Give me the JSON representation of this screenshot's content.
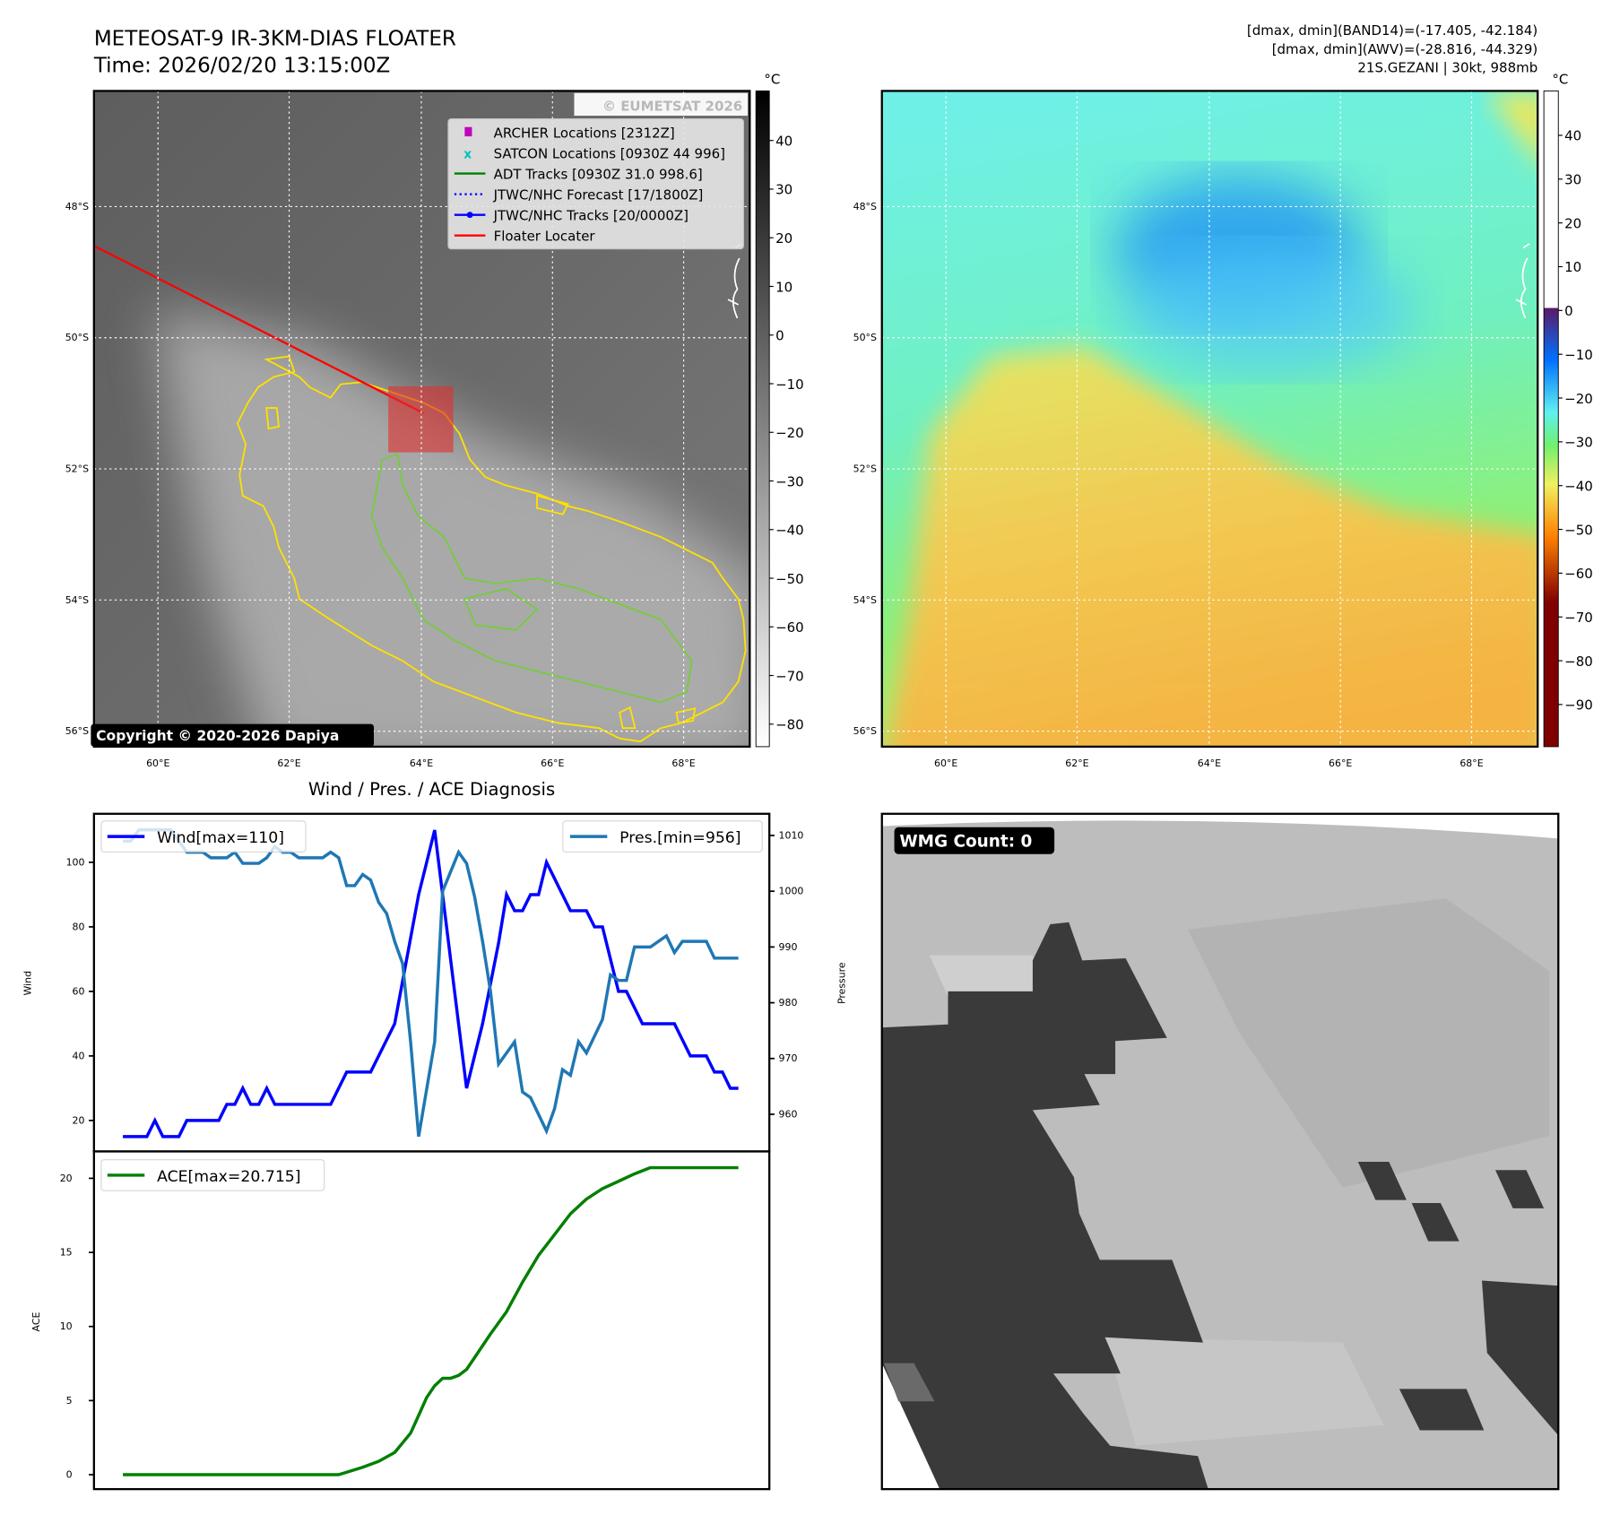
{
  "header": {
    "title": "METEOSAT-9 IR-3KM-DIAS FLOATER",
    "time": "Time: 2026/02/20 13:15:00Z",
    "stats_band14": "[dmax, dmin](BAND14)=(-17.405, -42.184)",
    "stats_awv": "[dmax, dmin](AWV)=(-28.816, -44.329)",
    "storm_info": "21S.GEZANI | 30kt, 988mb"
  },
  "maps": {
    "unit": "°C",
    "lat_labels": [
      "48°S",
      "50°S",
      "52°S",
      "54°S",
      "56°S"
    ],
    "lon_labels": [
      "60°E",
      "62°E",
      "64°E",
      "66°E",
      "68°E"
    ],
    "watermark": "© EUMETSAT 2026",
    "copyright": "Copyright © 2020-2026 Dapiya",
    "legend": [
      {
        "label": "ARCHER Locations [2312Z]",
        "color": "#c000c0"
      },
      {
        "label": "SATCON Locations [0930Z 44 996]",
        "color": "#00c0c0"
      },
      {
        "label": "ADT Tracks [0930Z 31.0 998.6]",
        "color": "#008000"
      },
      {
        "label": "JTWC/NHC Forecast [17/1800Z]",
        "color": "#0000ff"
      },
      {
        "label": "JTWC/NHC Tracks [20/0000Z]",
        "color": "#0000ff"
      },
      {
        "label": "Floater Locater",
        "color": "#ff0000"
      }
    ],
    "ir_colorbar_ticks": [
      "40",
      "30",
      "20",
      "10",
      "0",
      "−10",
      "−20",
      "−30",
      "−40",
      "−50",
      "−60",
      "−70",
      "−80"
    ],
    "awv_colorbar_ticks": [
      "40",
      "30",
      "20",
      "10",
      "0",
      "−10",
      "−20",
      "−30",
      "−40",
      "−50",
      "−60",
      "−70",
      "−80",
      "−90"
    ]
  },
  "wmg": {
    "label": "WMG Count: 0"
  },
  "chart_data": [
    {
      "type": "line",
      "title": "Wind / Pres. / ACE Diagnosis",
      "ylabel": "Wind",
      "ylabel_right": "Pressure",
      "ylim": [
        10,
        114
      ],
      "ylim_right": [
        953,
        1013
      ],
      "yticks": [
        "20",
        "40",
        "60",
        "80",
        "100"
      ],
      "yticks_right": [
        "960",
        "970",
        "980",
        "990",
        "1000",
        "1010"
      ],
      "legend_left": "Wind[max=110]",
      "legend_right": "Pres.[min=956]",
      "series": [
        {
          "name": "Wind",
          "color": "#0000ff",
          "x": [
            0,
            3,
            4,
            5,
            7,
            8,
            12,
            13,
            14,
            15,
            16,
            17,
            18,
            19,
            26,
            28,
            31,
            34,
            37,
            39,
            41,
            43,
            45,
            47,
            48,
            49,
            50,
            51,
            52,
            53,
            56,
            58,
            59,
            60,
            62,
            63,
            65,
            69,
            71,
            73,
            74,
            75,
            76,
            77
          ],
          "values": [
            15,
            15,
            20,
            15,
            15,
            20,
            20,
            25,
            25,
            30,
            25,
            25,
            30,
            25,
            25,
            35,
            35,
            50,
            90,
            110,
            70,
            30,
            50,
            75,
            90,
            85,
            85,
            90,
            90,
            100,
            85,
            85,
            80,
            80,
            60,
            60,
            50,
            50,
            40,
            40,
            35,
            35,
            30,
            30
          ]
        },
        {
          "name": "Pres.",
          "color": "#1f77b4",
          "x": [
            0,
            1,
            2,
            6,
            8,
            10,
            11,
            13,
            14,
            15,
            17,
            18,
            19,
            20,
            21,
            22,
            25,
            26,
            27,
            28,
            29,
            30,
            31,
            32,
            33,
            34,
            35,
            36,
            37,
            39,
            40,
            42,
            43,
            44,
            45,
            46,
            47,
            49,
            50,
            51,
            53,
            54,
            55,
            56,
            57,
            58,
            60,
            61,
            62,
            63,
            64,
            66,
            68,
            69,
            70,
            73,
            74,
            77
          ],
          "values": [
            1009,
            1009,
            1011,
            1011,
            1007,
            1007,
            1006,
            1006,
            1007,
            1005,
            1005,
            1006,
            1008,
            1007,
            1007,
            1006,
            1006,
            1007,
            1006,
            1001,
            1001,
            1003,
            1002,
            998,
            996,
            991,
            987,
            973,
            956,
            973,
            1000,
            1007,
            1005,
            999,
            991,
            982,
            969,
            973,
            964,
            963,
            957,
            961,
            968,
            967,
            973,
            971,
            977,
            985,
            984,
            984,
            990,
            990,
            992,
            989,
            991,
            991,
            988,
            988
          ]
        }
      ]
    },
    {
      "type": "line",
      "ylabel": "ACE",
      "ylim": [
        -1,
        21.8
      ],
      "yticks": [
        "0",
        "5",
        "10",
        "15",
        "20"
      ],
      "legend": "ACE[max=20.715]",
      "series": [
        {
          "name": "ACE",
          "color": "#008000",
          "x": [
            0,
            27,
            30,
            32,
            34,
            36,
            37,
            38,
            39,
            40,
            41,
            42,
            43,
            44,
            46,
            48,
            50,
            52,
            54,
            56,
            58,
            60,
            62,
            64,
            66,
            77
          ],
          "values": [
            0,
            0,
            0.5,
            0.9,
            1.5,
            2.8,
            4,
            5.2,
            6,
            6.5,
            6.5,
            6.7,
            7.1,
            7.9,
            9.5,
            11,
            13,
            14.8,
            16.2,
            17.6,
            18.6,
            19.3,
            19.8,
            20.3,
            20.715,
            20.715
          ]
        }
      ]
    }
  ]
}
